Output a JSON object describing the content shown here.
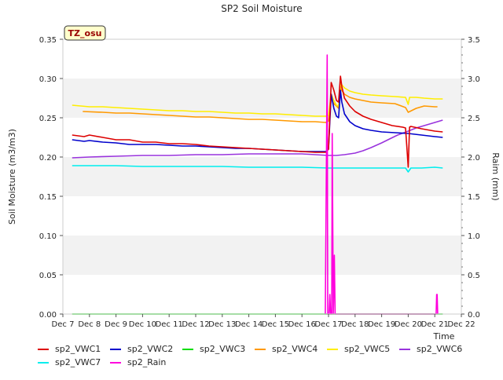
{
  "chart_data": {
    "type": "line",
    "title": "SP2 Soil Moisture",
    "xlabel": "Time",
    "ylabel": "Soil Moisture (m3/m3)",
    "y2label": "Raim (mm)",
    "site_badge": "TZ_osu",
    "xlim": [
      7,
      22
    ],
    "ylim": [
      0,
      0.35
    ],
    "y2lim": [
      0,
      3.5
    ],
    "x_tick_values": [
      7,
      8,
      9,
      10,
      11,
      12,
      13,
      14,
      15,
      16,
      17,
      18,
      19,
      20,
      21,
      22
    ],
    "x_tick_labels": [
      "Dec 7",
      "Dec 8",
      "Dec 9",
      "Dec 10",
      "Dec 11",
      "Dec 12",
      "Dec 13",
      "Dec 14",
      "Dec 15",
      "Dec 16",
      "Dec 17",
      "Dec 18",
      "Dec 19",
      "Dec 20",
      "Dec 21",
      "Dec 22"
    ],
    "y_tick_values": [
      0,
      0.05,
      0.1,
      0.15,
      0.2,
      0.25,
      0.3,
      0.35
    ],
    "y_tick_labels": [
      "0.00",
      "0.05",
      "0.10",
      "0.15",
      "0.20",
      "0.25",
      "0.30",
      "0.35"
    ],
    "y2_tick_values": [
      0,
      0.5,
      1,
      1.5,
      2,
      2.5,
      3,
      3.5
    ],
    "y2_tick_labels": [
      "0.0",
      "0.5",
      "1.0",
      "1.5",
      "2.0",
      "2.5",
      "3.0",
      "3.5"
    ],
    "grid": "horizontal bands",
    "legend_position": "bottom",
    "series": [
      {
        "name": "sp2_VWC1",
        "color": "#dd0000",
        "axis": "left",
        "x": [
          7.35,
          7.8,
          8.0,
          8.5,
          9.0,
          9.5,
          10.0,
          10.5,
          11.0,
          11.5,
          12.0,
          12.5,
          13.0,
          13.5,
          14.0,
          14.5,
          15.0,
          15.5,
          16.0,
          16.5,
          16.9,
          17.0,
          17.1,
          17.2,
          17.3,
          17.38,
          17.45,
          17.5,
          17.6,
          17.8,
          18.0,
          18.3,
          18.6,
          19.0,
          19.4,
          19.8,
          19.9,
          20.0,
          20.05,
          20.1,
          20.5,
          21.0,
          21.3
        ],
        "y": [
          0.228,
          0.226,
          0.228,
          0.225,
          0.222,
          0.222,
          0.219,
          0.219,
          0.217,
          0.217,
          0.216,
          0.214,
          0.213,
          0.212,
          0.211,
          0.21,
          0.209,
          0.208,
          0.207,
          0.206,
          0.206,
          0.21,
          0.295,
          0.285,
          0.272,
          0.27,
          0.303,
          0.29,
          0.275,
          0.265,
          0.258,
          0.252,
          0.248,
          0.244,
          0.24,
          0.238,
          0.237,
          0.187,
          0.238,
          0.239,
          0.236,
          0.233,
          0.232
        ]
      },
      {
        "name": "sp2_VWC2",
        "color": "#0000cc",
        "axis": "left",
        "x": [
          7.35,
          7.8,
          8.0,
          8.5,
          9.0,
          9.5,
          10.0,
          10.5,
          11.0,
          11.5,
          12.0,
          12.5,
          13.0,
          13.5,
          14.0,
          14.5,
          15.0,
          15.5,
          16.0,
          16.5,
          16.9,
          17.0,
          17.1,
          17.2,
          17.3,
          17.38,
          17.45,
          17.5,
          17.6,
          17.8,
          18.0,
          18.3,
          18.6,
          19.0,
          19.5,
          20.0,
          20.5,
          21.0,
          21.3
        ],
        "y": [
          0.222,
          0.22,
          0.221,
          0.219,
          0.218,
          0.216,
          0.216,
          0.216,
          0.215,
          0.214,
          0.214,
          0.213,
          0.212,
          0.211,
          0.211,
          0.21,
          0.209,
          0.208,
          0.207,
          0.207,
          0.207,
          0.21,
          0.28,
          0.262,
          0.252,
          0.25,
          0.285,
          0.27,
          0.255,
          0.245,
          0.24,
          0.236,
          0.234,
          0.232,
          0.231,
          0.23,
          0.228,
          0.226,
          0.225
        ]
      },
      {
        "name": "sp2_VWC3",
        "color": "#00dd00",
        "axis": "left",
        "x": [
          7.35,
          21.3
        ],
        "y": [
          0.0,
          0.0
        ]
      },
      {
        "name": "sp2_VWC4",
        "color": "#ff9900",
        "axis": "left",
        "x": [
          7.75,
          8.5,
          9.0,
          9.5,
          10.0,
          10.5,
          11.0,
          11.5,
          12.0,
          12.5,
          13.0,
          13.5,
          14.0,
          14.5,
          15.0,
          15.5,
          16.0,
          16.5,
          16.9,
          17.0,
          17.1,
          17.2,
          17.3,
          17.38,
          17.45,
          17.5,
          17.6,
          17.8,
          18.0,
          18.3,
          18.6,
          19.0,
          19.5,
          19.9,
          20.0,
          20.3,
          20.6,
          21.0,
          21.1
        ],
        "y": [
          0.258,
          0.257,
          0.256,
          0.256,
          0.255,
          0.254,
          0.253,
          0.252,
          0.251,
          0.251,
          0.25,
          0.249,
          0.248,
          0.248,
          0.247,
          0.246,
          0.245,
          0.245,
          0.244,
          0.246,
          0.275,
          0.268,
          0.265,
          0.262,
          0.29,
          0.285,
          0.28,
          0.276,
          0.274,
          0.272,
          0.27,
          0.269,
          0.268,
          0.263,
          0.257,
          0.262,
          0.265,
          0.264,
          0.264
        ]
      },
      {
        "name": "sp2_VWC5",
        "color": "#ffee00",
        "axis": "left",
        "x": [
          7.35,
          8.0,
          8.5,
          9.0,
          9.5,
          10.0,
          10.5,
          11.0,
          11.5,
          12.0,
          12.5,
          13.0,
          13.5,
          14.0,
          14.5,
          15.0,
          15.5,
          16.0,
          16.5,
          16.9,
          17.0,
          17.1,
          17.2,
          17.3,
          17.38,
          17.45,
          17.5,
          17.6,
          17.8,
          18.0,
          18.3,
          18.6,
          19.0,
          19.5,
          19.9,
          20.0,
          20.05,
          20.3,
          20.6,
          21.0,
          21.3
        ],
        "y": [
          0.266,
          0.264,
          0.264,
          0.263,
          0.262,
          0.261,
          0.26,
          0.259,
          0.259,
          0.258,
          0.258,
          0.257,
          0.256,
          0.256,
          0.255,
          0.255,
          0.254,
          0.253,
          0.252,
          0.252,
          0.253,
          0.28,
          0.272,
          0.266,
          0.265,
          0.295,
          0.292,
          0.288,
          0.284,
          0.282,
          0.28,
          0.279,
          0.278,
          0.277,
          0.276,
          0.267,
          0.276,
          0.276,
          0.275,
          0.274,
          0.274
        ]
      },
      {
        "name": "sp2_VWC6",
        "color": "#9933dd",
        "axis": "left",
        "x": [
          7.35,
          8.0,
          9.0,
          10.0,
          11.0,
          12.0,
          13.0,
          14.0,
          15.0,
          16.0,
          16.5,
          17.0,
          17.3,
          17.6,
          18.0,
          18.3,
          18.6,
          19.0,
          19.3,
          19.6,
          20.0,
          20.3,
          20.6,
          21.0,
          21.3
        ],
        "y": [
          0.199,
          0.2,
          0.201,
          0.202,
          0.202,
          0.203,
          0.203,
          0.204,
          0.204,
          0.204,
          0.203,
          0.202,
          0.202,
          0.203,
          0.205,
          0.208,
          0.212,
          0.218,
          0.223,
          0.228,
          0.233,
          0.237,
          0.24,
          0.244,
          0.247
        ]
      },
      {
        "name": "sp2_VWC7",
        "color": "#00eeee",
        "axis": "left",
        "x": [
          7.35,
          8.0,
          9.0,
          10.0,
          11.0,
          12.0,
          13.0,
          14.0,
          15.0,
          16.0,
          17.0,
          18.0,
          19.0,
          19.9,
          20.0,
          20.1,
          20.5,
          21.0,
          21.3
        ],
        "y": [
          0.189,
          0.189,
          0.189,
          0.188,
          0.188,
          0.188,
          0.188,
          0.187,
          0.187,
          0.187,
          0.186,
          0.186,
          0.186,
          0.186,
          0.181,
          0.186,
          0.186,
          0.187,
          0.186
        ],
        "note_dummy_removed": null
      },
      {
        "name": "sp2_Rain",
        "color": "#ff00dd",
        "axis": "right",
        "x": [
          16.88,
          16.95,
          16.97,
          17.02,
          17.05,
          17.08,
          17.12,
          17.14,
          17.18,
          17.22,
          17.25,
          17.28,
          17.31,
          17.34,
          21.05,
          21.07,
          21.09,
          21.11
        ],
        "y": [
          0.0,
          3.3,
          0.0,
          0.0,
          0.25,
          0.0,
          0.0,
          2.3,
          0.0,
          0.75,
          0.0,
          0.0,
          0.0,
          0.0,
          0.0,
          0.25,
          0.25,
          0.0
        ]
      }
    ]
  }
}
